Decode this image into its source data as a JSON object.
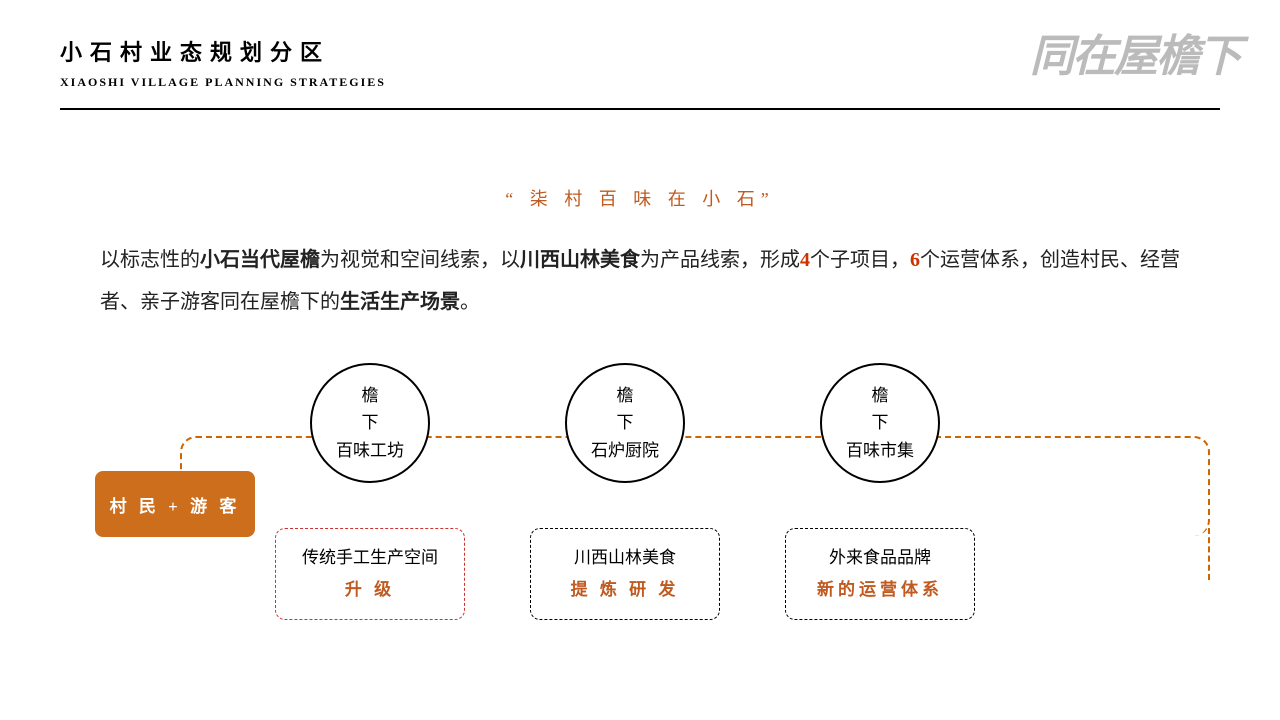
{
  "header": {
    "title_cn": "小石村业态规划分区",
    "title_en": "XIAOSHI VILLAGE PLANNING STRATEGIES",
    "calligraphy": "同在屋檐下"
  },
  "quote": "“ 柒 村 百  味 在  小 石”",
  "description": {
    "parts": [
      {
        "text": "以标志性的",
        "cls": ""
      },
      {
        "text": "小石当代屋檐",
        "cls": "bold"
      },
      {
        "text": "为视觉和空间线索，以",
        "cls": ""
      },
      {
        "text": "川西山林美食",
        "cls": "bold"
      },
      {
        "text": "为产品线索，形成",
        "cls": ""
      },
      {
        "text": "4",
        "cls": "accent"
      },
      {
        "text": "个子项目，",
        "cls": ""
      },
      {
        "text": "6",
        "cls": "accent"
      },
      {
        "text": "个运营体系，创造村民、经营者、亲子游客同在屋檐下的",
        "cls": ""
      },
      {
        "text": "生活生产场景",
        "cls": "bold"
      },
      {
        "text": "。",
        "cls": ""
      }
    ]
  },
  "diagram": {
    "entry": "村 民 + 游 客",
    "circles": [
      {
        "top": "檐下",
        "bottom": "百味工坊"
      },
      {
        "top": "檐下",
        "bottom": "石炉厨院"
      },
      {
        "top": "檐下",
        "bottom": "百味市集"
      }
    ],
    "sub_boxes": [
      {
        "title": "传统手工生产空间",
        "action": "升 级",
        "red": true
      },
      {
        "title": "川西山林美食",
        "action": "提 炼  研 发",
        "red": false
      },
      {
        "title": "外来食品品牌",
        "action": "新的运营体系",
        "red": false
      }
    ],
    "colors": {
      "accent_orange": "#cc6e1c",
      "dashed_orange": "#cc6600",
      "text_orange": "#c05a20",
      "accent_red": "#cc3300",
      "black": "#000000",
      "background": "#ffffff"
    }
  }
}
